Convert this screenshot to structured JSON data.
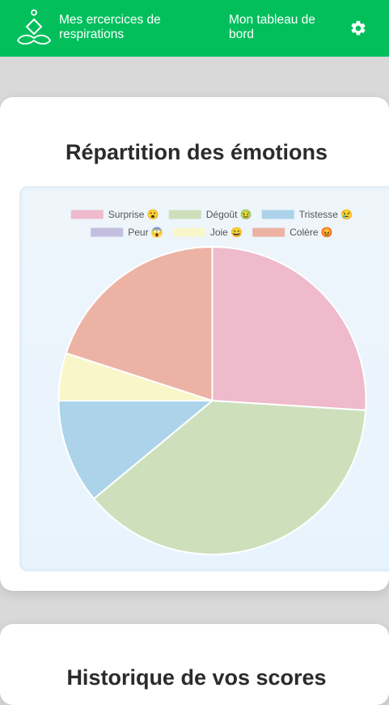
{
  "header": {
    "app_title": "Mes ercercices de respirations",
    "dashboard_link": "Mon tableau de bord",
    "brand_color": "#02bf5c",
    "logo_icon": "meditation-lotus-icon",
    "settings_icon": "gear-icon"
  },
  "emotions_card": {
    "title": "Répartition des émotions"
  },
  "chart_data": {
    "type": "pie",
    "title": "",
    "legend_position": "top",
    "categories": [
      "Surprise 😮",
      "Dégoût 🤢",
      "Tristesse 😢",
      "Peur 😱",
      "Joie 😄",
      "Colère 😡"
    ],
    "values": [
      26,
      38,
      11,
      0,
      5,
      20
    ],
    "colors": [
      "#eebacc",
      "#cde0bb",
      "#acd3ea",
      "#c3bedf",
      "#f9f7c9",
      "#ecb3a5"
    ]
  },
  "history_card": {
    "title": "Historique de vos scores"
  }
}
